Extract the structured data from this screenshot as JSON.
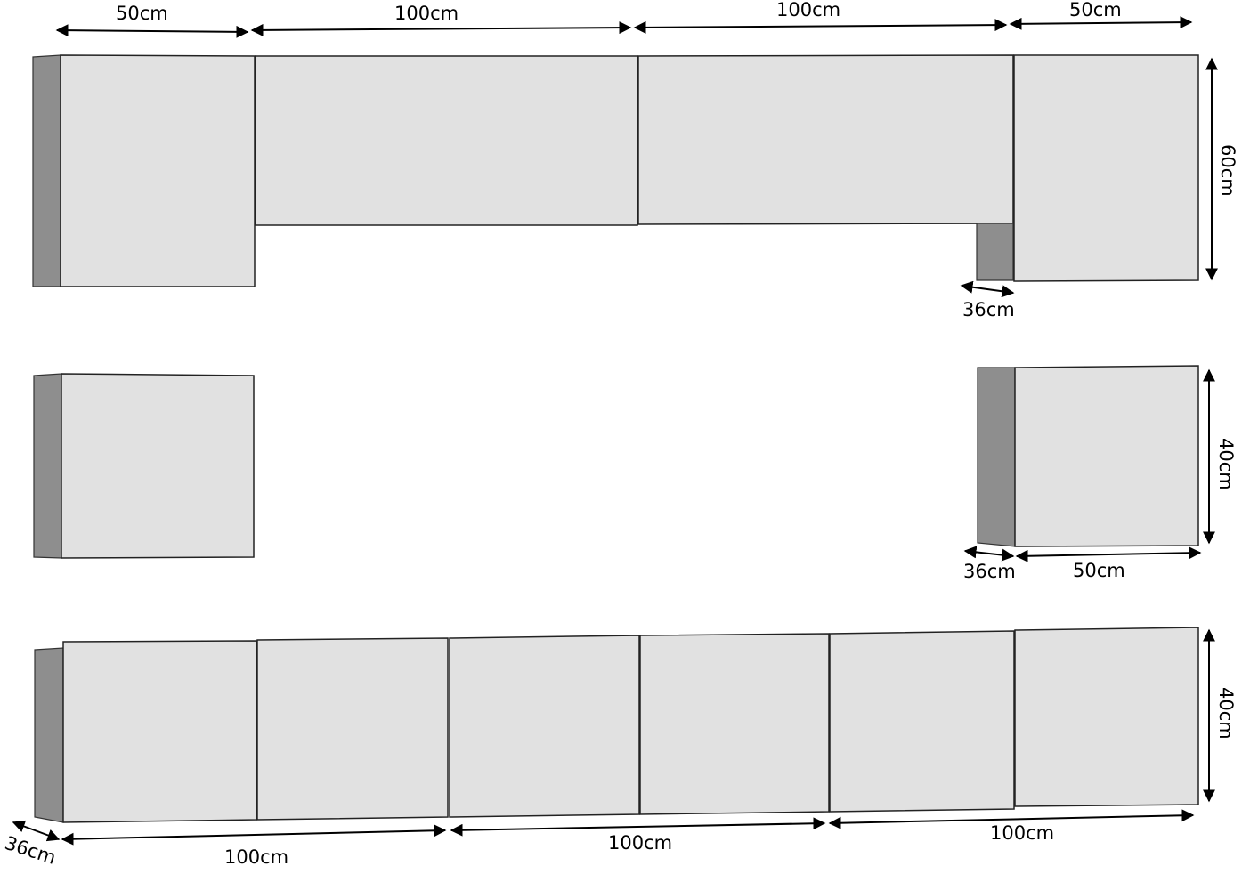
{
  "colors": {
    "front": "#e1e1e1",
    "side": "#8e8e8e",
    "line": "#000000"
  },
  "top_row": {
    "widths": [
      "50cm",
      "100cm",
      "100cm",
      "50cm"
    ],
    "height": "60cm",
    "depth": "36cm"
  },
  "middle_right": {
    "height": "40cm",
    "depth": "36cm",
    "width": "50cm"
  },
  "bottom_row": {
    "height": "40cm",
    "depth": "36cm",
    "widths": [
      "100cm",
      "100cm",
      "100cm"
    ]
  }
}
